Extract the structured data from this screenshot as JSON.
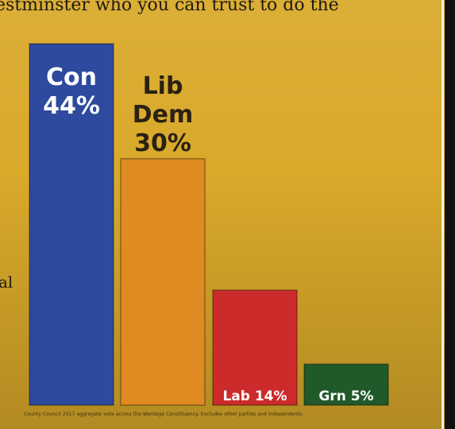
{
  "headline": "estminster who you can trust to do the",
  "edge_text": "al",
  "footnote": "County Council 2017 aggregate vote across the Wantage Constituency. Excludes other parties and Independents.",
  "colors": {
    "background": "#d9a92a",
    "con": "#2e4a9e",
    "libdem": "#e08a22",
    "lab": "#cc2b2b",
    "grn": "#215a2a"
  },
  "chart_data": {
    "type": "bar",
    "categories": [
      "Con",
      "Lib Dem",
      "Lab",
      "Grn"
    ],
    "values": [
      44,
      30,
      14,
      5
    ],
    "labels": [
      {
        "lines": [
          "Con",
          "44%"
        ],
        "placement": "inside-top",
        "color": "#ffffff"
      },
      {
        "lines": [
          "Lib",
          "Dem",
          "30%"
        ],
        "placement": "above",
        "color": "#2a2112"
      },
      {
        "lines": [
          "Lab 14%"
        ],
        "placement": "inside-bottom",
        "color": "#ffffff"
      },
      {
        "lines": [
          "Grn 5%"
        ],
        "placement": "inside-bottom",
        "color": "#ffffff"
      }
    ],
    "bar_colors": [
      "#2e4a9e",
      "#e08a22",
      "#cc2b2b",
      "#215a2a"
    ],
    "ylim": [
      0,
      44
    ],
    "grid": false,
    "legend": "none"
  }
}
